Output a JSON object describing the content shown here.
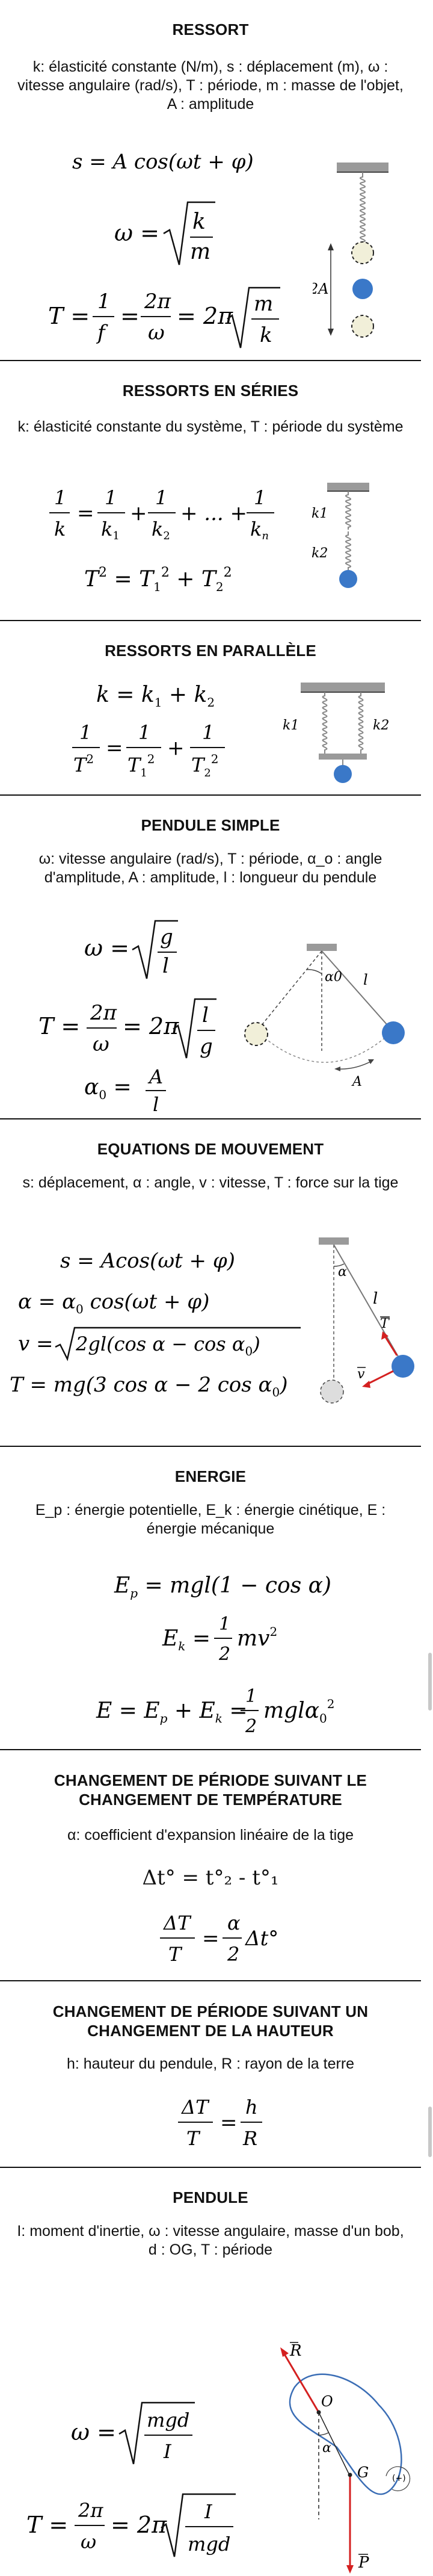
{
  "sections": [
    {
      "title": "RESSORT",
      "desc": "k: élasticité constante (N/m), s : déplacement (m), ω : vitesse angulaire (rad/s), T : période, m : masse de l'objet, A : amplitude",
      "ill_label": "2A"
    },
    {
      "title": "RESSORTS EN SÉRIES",
      "desc": "k: élasticité constante du système, T : période du système",
      "ill_labels": [
        "k1",
        "k2"
      ]
    },
    {
      "title": "RESSORTS EN PARALLÈLE",
      "ill_labels": [
        "k1",
        "k2"
      ]
    },
    {
      "title": "PENDULE SIMPLE",
      "desc": "ω: vitesse angulaire (rad/s), T : période, α_o : angle d'amplitude, A : amplitude, l : longueur du pendule",
      "ill_labels": [
        "α0",
        "l",
        "A"
      ]
    },
    {
      "title": "EQUATIONS DE MOUVEMENT",
      "desc": "s: déplacement, α : angle, v : vitesse, T : force sur la tige",
      "ill_labels": [
        "α",
        "l",
        "T",
        "v"
      ]
    },
    {
      "title": "ENERGIE",
      "desc": "E_p : énergie potentielle, E_k : énergie cinétique, E : énergie mécanique"
    },
    {
      "title": "CHANGEMENT DE PÉRIODE SUIVANT LE CHANGEMENT DE TEMPÉRATURE",
      "desc": "α: coefficient d'expansion linéaire de la tige",
      "formula_text": "Δt° = t°₂ - t°₁"
    },
    {
      "title": "CHANGEMENT DE PÉRIODE SUIVANT UN CHANGEMENT DE LA HAUTEUR",
      "desc": "h: hauteur du pendule, R : rayon de la terre"
    },
    {
      "title": "PENDULE",
      "desc": "I: moment d'inertie, ω : vitesse angulaire, masse d'un bob, d : OG, T : période",
      "ill_labels": [
        "R",
        "O",
        "α",
        "G",
        "(+)",
        "P"
      ]
    }
  ],
  "colors": {
    "ball": "#3a78c8",
    "arrow": "#d42020",
    "outline": "#3a6db5"
  }
}
